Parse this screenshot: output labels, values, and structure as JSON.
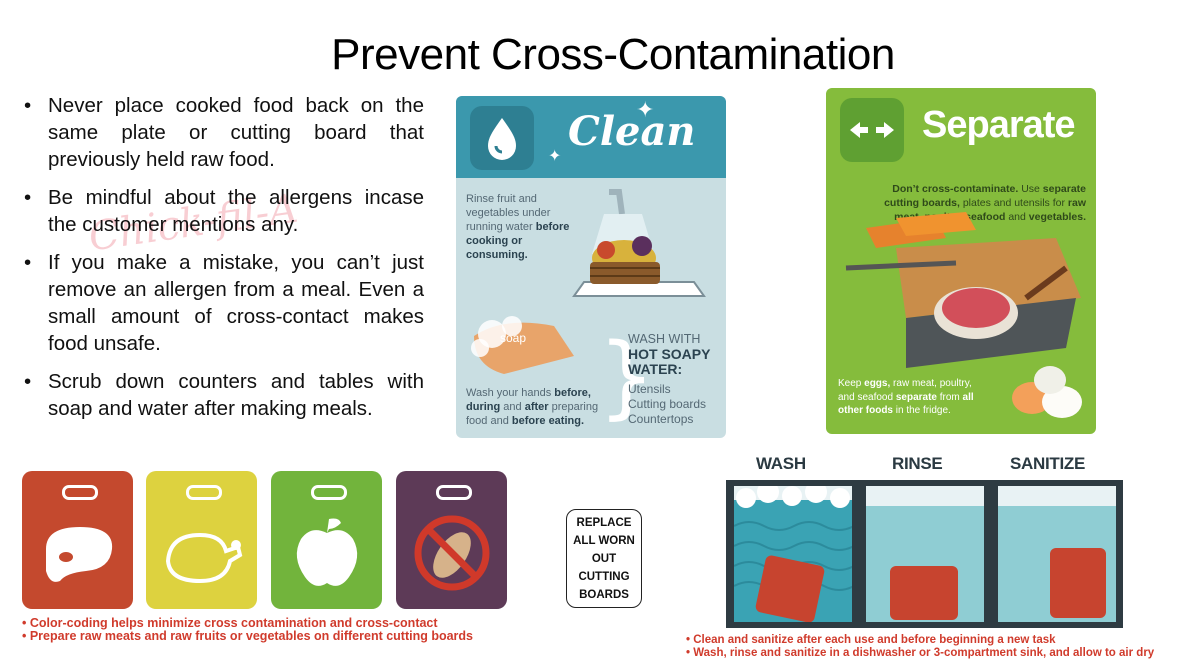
{
  "title": "Prevent Cross-Contamination",
  "bullets": [
    "Never place cooked food back on the same plate or cutting board that previously held raw food.",
    "Be mindful about the allergens incase the customer mentions any.",
    "If you make a mistake, you can’t just remove an allergen from a meal. Even a small amount of cross-contact makes food unsafe.",
    "Scrub down counters and tables with soap and water after making meals."
  ],
  "watermark": "Chick-fil-A",
  "clean": {
    "heading": "Clean",
    "rinse_text": "Rinse fruit and vegetables under running water",
    "rinse_bold": "before cooking or consuming.",
    "soap_label": "soap",
    "wash_heading_1": "WASH WITH",
    "wash_heading_2": "HOT SOAPY",
    "wash_heading_3": "WATER:",
    "wash_items": [
      "Utensils",
      "Cutting boards",
      "Countertops"
    ],
    "hands_text_1": "Wash your hands",
    "hands_bold_1": "before,",
    "hands_bold_2": "during",
    "hands_text_2": "and",
    "hands_bold_3": "after",
    "hands_text_3": "preparing food and",
    "hands_bold_4": "before eating."
  },
  "separate": {
    "heading": "Separate",
    "text_bold_1": "Don’t cross-contaminate.",
    "text_1": "Use",
    "text_bold_2": "separate cutting boards,",
    "text_2": "plates and utensils for",
    "text_bold_3": "raw meat, poultry, seafood",
    "text_3": "and",
    "text_bold_4": "vegetables.",
    "fridge_1": "Keep",
    "fridge_bold_1": "eggs,",
    "fridge_2": "raw meat, poultry, and seafood",
    "fridge_bold_2": "separate",
    "fridge_3": "from",
    "fridge_bold_3": "all other foods",
    "fridge_4": "in the fridge."
  },
  "boards": [
    {
      "icon": "meat-icon",
      "color": "#c4492e"
    },
    {
      "icon": "poultry-icon",
      "color": "#ddd23f"
    },
    {
      "icon": "apple-icon",
      "color": "#72b43c"
    },
    {
      "icon": "no-peanut-icon",
      "color": "#5d3a57"
    }
  ],
  "boards_notes": [
    "• Color-coding helps minimize cross contamination and cross-contact",
    "• Prepare raw meats and raw fruits or vegetables on different cutting boards"
  ],
  "replace_text": "REPLACE ALL WORN OUT CUTTING BOARDS",
  "sink": {
    "labels": [
      "WASH",
      "RINSE",
      "SANITIZE"
    ],
    "water_color": "#3aa3b4",
    "board_color": "#c7442f"
  },
  "sink_notes": [
    "• Clean and sanitize after each use and before beginning a new task",
    "• Wash, rinse and sanitize in a dishwasher or 3-compartment sink, and allow to air dry"
  ]
}
